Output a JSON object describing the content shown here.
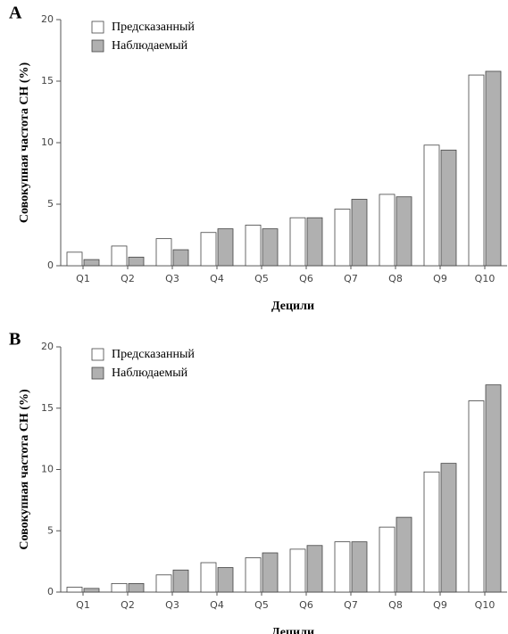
{
  "chart_data": [
    {
      "type": "bar",
      "label": "A",
      "ylabel": "Совокупная частота СН (%)",
      "xlabel": "Децили",
      "categories": [
        "Q1",
        "Q2",
        "Q3",
        "Q4",
        "Q5",
        "Q6",
        "Q7",
        "Q8",
        "Q9",
        "Q10"
      ],
      "series": [
        {
          "name": "Предсказанный",
          "color": "#ffffff",
          "values": [
            1.1,
            1.6,
            2.2,
            2.7,
            3.3,
            3.9,
            4.6,
            5.8,
            9.8,
            15.5
          ]
        },
        {
          "name": "Наблюдаемый",
          "color": "#b0b0b0",
          "values": [
            0.5,
            0.7,
            1.3,
            3.0,
            3.0,
            3.9,
            5.4,
            5.6,
            9.4,
            15.8
          ]
        }
      ],
      "ylim": [
        0,
        20
      ],
      "yticks": [
        0,
        5,
        10,
        15,
        20
      ]
    },
    {
      "type": "bar",
      "label": "B",
      "ylabel": "Совокупная частота СН (%)",
      "xlabel": "Децили",
      "categories": [
        "Q1",
        "Q2",
        "Q3",
        "Q4",
        "Q5",
        "Q6",
        "Q7",
        "Q8",
        "Q9",
        "Q10"
      ],
      "series": [
        {
          "name": "Предсказанный",
          "color": "#ffffff",
          "values": [
            0.4,
            0.7,
            1.4,
            2.4,
            2.8,
            3.5,
            4.1,
            5.3,
            9.8,
            15.6
          ]
        },
        {
          "name": "Наблюдаемый",
          "color": "#b0b0b0",
          "values": [
            0.3,
            0.7,
            1.8,
            2.0,
            3.2,
            3.8,
            4.1,
            6.1,
            10.5,
            16.9
          ]
        }
      ],
      "ylim": [
        0,
        20
      ],
      "yticks": [
        0,
        5,
        10,
        15,
        20
      ]
    }
  ]
}
